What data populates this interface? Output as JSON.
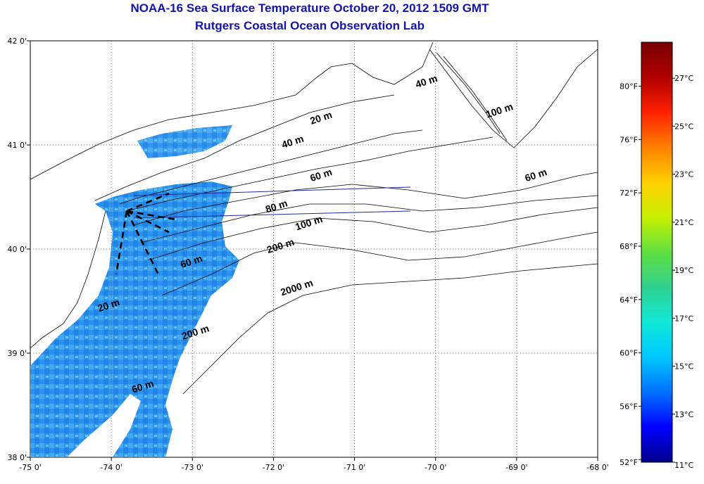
{
  "title": "NOAA-16 Sea Surface Temperature October 20, 2012 1509 GMT",
  "subtitle": "Rutgers Coastal Ocean Observation Lab",
  "lon_ticks": [
    "-75 0'",
    "-74 0'",
    "-73 0'",
    "-72 0'",
    "-71 0'",
    "-70 0'",
    "-69 0'",
    "-68 0'"
  ],
  "lat_ticks": [
    "38 0'",
    "39 0'",
    "40 0'",
    "41 0'",
    "42 0'"
  ],
  "extent": {
    "lon_min": -75,
    "lon_max": -68,
    "lat_min": 38,
    "lat_max": 42
  },
  "colorbar": {
    "fahrenheit": [
      "52°F",
      "56°F",
      "60°F",
      "64°F",
      "68°F",
      "72°F",
      "76°F",
      "80°F"
    ],
    "celsius": [
      "11°C",
      "13°C",
      "15°C",
      "17°C",
      "19°C",
      "21°C",
      "23°C",
      "25°C",
      "27°C"
    ],
    "c_min": 11,
    "c_max": 28.5,
    "colors": [
      "#00008b",
      "#0000ff",
      "#0070ff",
      "#00c8ff",
      "#10e8d8",
      "#30d090",
      "#60e040",
      "#c8f000",
      "#ffd000",
      "#ff8000",
      "#ff2000",
      "#b00000",
      "#780000"
    ]
  },
  "contour_labels": [
    {
      "text": "20 m",
      "lon": -71.4,
      "lat": 41.23
    },
    {
      "text": "40 m",
      "lon": -71.75,
      "lat": 41.0
    },
    {
      "text": "40 m",
      "lon": -70.1,
      "lat": 41.58
    },
    {
      "text": "100 m",
      "lon": -69.2,
      "lat": 41.3
    },
    {
      "text": "60 m",
      "lon": -71.4,
      "lat": 40.68
    },
    {
      "text": "60 m",
      "lon": -68.75,
      "lat": 40.68
    },
    {
      "text": "80 m",
      "lon": -71.95,
      "lat": 40.38
    },
    {
      "text": "100 m",
      "lon": -71.55,
      "lat": 40.22
    },
    {
      "text": "200 m",
      "lon": -71.9,
      "lat": 40.0
    },
    {
      "text": "60 m",
      "lon": -73.0,
      "lat": 39.85
    },
    {
      "text": "2000 m",
      "lon": -71.7,
      "lat": 39.6
    },
    {
      "text": "20 m",
      "lon": -74.02,
      "lat": 39.43
    },
    {
      "text": "200 m",
      "lon": -72.95,
      "lat": 39.17
    },
    {
      "text": "60 m",
      "lon": -73.6,
      "lat": 38.65
    }
  ],
  "colors": {
    "title": "#1414a8",
    "track": "#1e2a9c",
    "land_outline": "#000000"
  }
}
